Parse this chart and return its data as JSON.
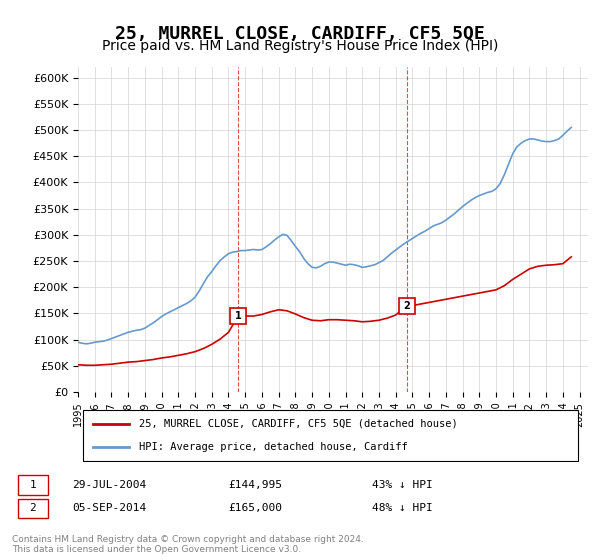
{
  "title": "25, MURREL CLOSE, CARDIFF, CF5 5QE",
  "subtitle": "Price paid vs. HM Land Registry's House Price Index (HPI)",
  "ylabel": "",
  "ylim": [
    0,
    620000
  ],
  "yticks": [
    0,
    50000,
    100000,
    150000,
    200000,
    250000,
    300000,
    350000,
    400000,
    450000,
    500000,
    550000,
    600000
  ],
  "ytick_labels": [
    "£0",
    "£50K",
    "£100K",
    "£150K",
    "£200K",
    "£250K",
    "£300K",
    "£350K",
    "£400K",
    "£450K",
    "£500K",
    "£550K",
    "£600K"
  ],
  "xlim_start": 1995.0,
  "xlim_end": 2025.5,
  "title_fontsize": 13,
  "subtitle_fontsize": 10,
  "legend_label_red": "25, MURREL CLOSE, CARDIFF, CF5 5QE (detached house)",
  "legend_label_blue": "HPI: Average price, detached house, Cardiff",
  "point1_label": "1",
  "point1_x": 2004.57,
  "point1_y": 144995,
  "point1_text": "29-JUL-2004",
  "point1_price": "£144,995",
  "point1_hpi": "43% ↓ HPI",
  "point2_label": "2",
  "point2_x": 2014.68,
  "point2_y": 165000,
  "point2_text": "05-SEP-2014",
  "point2_price": "£165,000",
  "point2_hpi": "48% ↓ HPI",
  "red_color": "#cc0000",
  "blue_color": "#6699cc",
  "vline_color": "#cc0000",
  "footer": "Contains HM Land Registry data © Crown copyright and database right 2024.\nThis data is licensed under the Open Government Licence v3.0.",
  "hpi_years": [
    1995.0,
    1995.25,
    1995.5,
    1995.75,
    1996.0,
    1996.25,
    1996.5,
    1996.75,
    1997.0,
    1997.25,
    1997.5,
    1997.75,
    1998.0,
    1998.25,
    1998.5,
    1998.75,
    1999.0,
    1999.25,
    1999.5,
    1999.75,
    2000.0,
    2000.25,
    2000.5,
    2000.75,
    2001.0,
    2001.25,
    2001.5,
    2001.75,
    2002.0,
    2002.25,
    2002.5,
    2002.75,
    2003.0,
    2003.25,
    2003.5,
    2003.75,
    2004.0,
    2004.25,
    2004.5,
    2004.75,
    2005.0,
    2005.25,
    2005.5,
    2005.75,
    2006.0,
    2006.25,
    2006.5,
    2006.75,
    2007.0,
    2007.25,
    2007.5,
    2007.75,
    2008.0,
    2008.25,
    2008.5,
    2008.75,
    2009.0,
    2009.25,
    2009.5,
    2009.75,
    2010.0,
    2010.25,
    2010.5,
    2010.75,
    2011.0,
    2011.25,
    2011.5,
    2011.75,
    2012.0,
    2012.25,
    2012.5,
    2012.75,
    2013.0,
    2013.25,
    2013.5,
    2013.75,
    2014.0,
    2014.25,
    2014.5,
    2014.75,
    2015.0,
    2015.25,
    2015.5,
    2015.75,
    2016.0,
    2016.25,
    2016.5,
    2016.75,
    2017.0,
    2017.25,
    2017.5,
    2017.75,
    2018.0,
    2018.25,
    2018.5,
    2018.75,
    2019.0,
    2019.25,
    2019.5,
    2019.75,
    2020.0,
    2020.25,
    2020.5,
    2020.75,
    2021.0,
    2021.25,
    2021.5,
    2021.75,
    2022.0,
    2022.25,
    2022.5,
    2022.75,
    2023.0,
    2023.25,
    2023.5,
    2023.75,
    2024.0,
    2024.25,
    2024.5
  ],
  "hpi_values": [
    95000,
    93000,
    92000,
    93000,
    95000,
    96000,
    97000,
    99000,
    102000,
    105000,
    108000,
    111000,
    114000,
    116000,
    118000,
    119000,
    122000,
    127000,
    132000,
    138000,
    144000,
    149000,
    153000,
    157000,
    161000,
    165000,
    169000,
    174000,
    181000,
    193000,
    207000,
    220000,
    230000,
    241000,
    251000,
    258000,
    264000,
    267000,
    268000,
    270000,
    270000,
    271000,
    272000,
    271000,
    272000,
    277000,
    283000,
    290000,
    296000,
    301000,
    299000,
    289000,
    278000,
    268000,
    255000,
    245000,
    238000,
    237000,
    240000,
    245000,
    248000,
    248000,
    246000,
    244000,
    242000,
    244000,
    243000,
    241000,
    238000,
    239000,
    241000,
    243000,
    247000,
    251000,
    258000,
    265000,
    271000,
    277000,
    283000,
    288000,
    293000,
    298000,
    303000,
    307000,
    312000,
    317000,
    320000,
    323000,
    328000,
    334000,
    340000,
    347000,
    354000,
    360000,
    366000,
    371000,
    375000,
    378000,
    381000,
    383000,
    388000,
    398000,
    415000,
    435000,
    455000,
    468000,
    475000,
    480000,
    483000,
    483000,
    481000,
    479000,
    478000,
    478000,
    480000,
    483000,
    490000,
    498000,
    505000
  ],
  "red_years": [
    1995.0,
    1995.5,
    1996.0,
    1996.5,
    1997.0,
    1997.5,
    1998.0,
    1998.5,
    1999.0,
    1999.5,
    2000.0,
    2000.5,
    2001.0,
    2001.5,
    2002.0,
    2002.5,
    2003.0,
    2003.5,
    2004.0,
    2004.57,
    2005.0,
    2005.5,
    2006.0,
    2006.5,
    2007.0,
    2007.5,
    2008.0,
    2008.5,
    2009.0,
    2009.5,
    2010.0,
    2010.5,
    2011.0,
    2011.5,
    2012.0,
    2012.5,
    2013.0,
    2013.5,
    2014.0,
    2014.68,
    2015.0,
    2015.5,
    2016.0,
    2016.5,
    2017.0,
    2017.5,
    2018.0,
    2018.5,
    2019.0,
    2019.5,
    2020.0,
    2020.5,
    2021.0,
    2021.5,
    2022.0,
    2022.5,
    2023.0,
    2023.5,
    2024.0,
    2024.5
  ],
  "red_values": [
    52000,
    51000,
    51000,
    52000,
    53000,
    55000,
    57000,
    58000,
    60000,
    62000,
    65000,
    67000,
    70000,
    73000,
    77000,
    83000,
    91000,
    101000,
    114000,
    144995,
    144995,
    145000,
    148000,
    153000,
    157000,
    155000,
    149000,
    142000,
    137000,
    136000,
    138000,
    138000,
    137000,
    136000,
    134000,
    135000,
    137000,
    141000,
    147000,
    165000,
    165000,
    168000,
    171000,
    174000,
    177000,
    180000,
    183000,
    186000,
    189000,
    192000,
    195000,
    203000,
    215000,
    225000,
    235000,
    240000,
    242000,
    243000,
    245000,
    258000
  ]
}
